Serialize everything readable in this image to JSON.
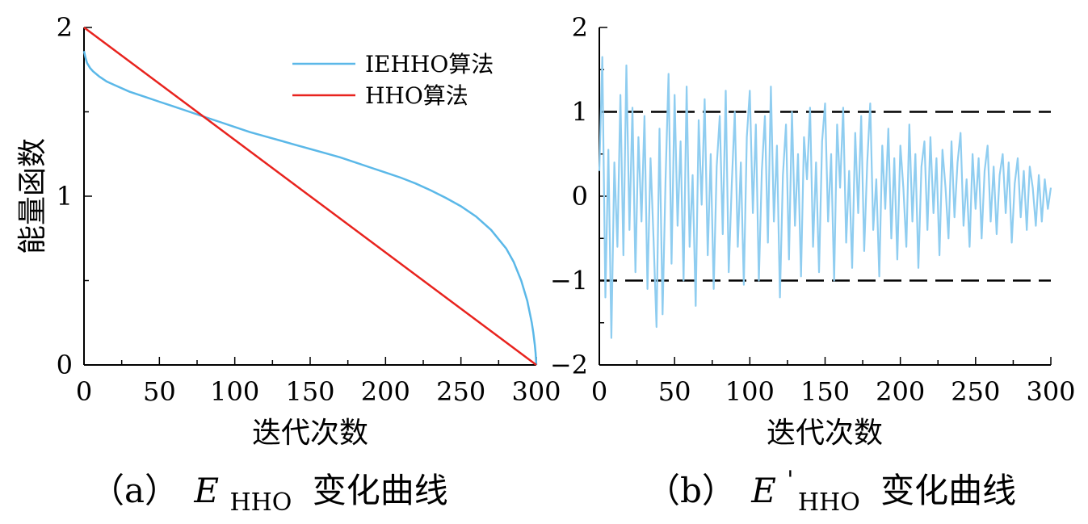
{
  "chart_data": [
    {
      "id": "a",
      "type": "line",
      "caption": {
        "prefix": "（a）",
        "symbol": "E",
        "subscript": "HHO",
        "suffix": "变化曲线"
      },
      "xlabel": "迭代次数",
      "ylabel": "能量函数",
      "xlim": [
        0,
        300
      ],
      "ylim": [
        0,
        2
      ],
      "xticks": [
        0,
        50,
        100,
        150,
        200,
        250,
        300
      ],
      "yticks": [
        0,
        1,
        2
      ],
      "grid": false,
      "legend_position": "top-right",
      "series": [
        {
          "name": "IEHHO算法",
          "color": "#5bb8e8",
          "x": [
            0,
            1,
            2,
            4,
            6,
            10,
            15,
            20,
            30,
            40,
            50,
            60,
            70,
            80,
            90,
            100,
            110,
            120,
            130,
            140,
            150,
            160,
            170,
            180,
            190,
            200,
            210,
            220,
            230,
            240,
            250,
            260,
            270,
            280,
            285,
            290,
            294,
            297,
            298,
            299,
            299.5,
            300
          ],
          "y": [
            1.86,
            1.82,
            1.79,
            1.76,
            1.74,
            1.71,
            1.68,
            1.66,
            1.62,
            1.59,
            1.56,
            1.53,
            1.5,
            1.47,
            1.44,
            1.41,
            1.38,
            1.355,
            1.33,
            1.305,
            1.28,
            1.255,
            1.23,
            1.2,
            1.17,
            1.14,
            1.11,
            1.075,
            1.035,
            0.99,
            0.94,
            0.88,
            0.8,
            0.69,
            0.61,
            0.5,
            0.38,
            0.25,
            0.19,
            0.12,
            0.07,
            0.0
          ]
        },
        {
          "name": "HHO算法",
          "color": "#e8231e",
          "x": [
            0,
            300
          ],
          "y": [
            2,
            0
          ]
        }
      ]
    },
    {
      "id": "b",
      "type": "line",
      "caption": {
        "prefix": "（b）",
        "symbol": "E",
        "prime": "'",
        "subscript": "HHO",
        "suffix": "变化曲线"
      },
      "xlabel": "迭代次数",
      "ylabel": "",
      "xlim": [
        0,
        300
      ],
      "ylim": [
        -2,
        2
      ],
      "xticks": [
        0,
        50,
        100,
        150,
        200,
        250,
        300
      ],
      "yticks": [
        -2,
        -1,
        0,
        1,
        2
      ],
      "ytick_labels": [
        "−2",
        "−1",
        "0",
        "1",
        "2"
      ],
      "grid": false,
      "reference_lines": [
        {
          "y": 1,
          "style": "dashed",
          "color": "#000000"
        },
        {
          "y": -1,
          "style": "dashed",
          "color": "#000000"
        }
      ],
      "series": [
        {
          "color": "#8fcdf0",
          "amplitude_envelope": {
            "start": 1.7,
            "end": 0.5
          },
          "x": [
            0,
            2,
            4,
            6,
            8,
            10,
            12,
            14,
            16,
            18,
            20,
            22,
            24,
            26,
            28,
            30,
            32,
            34,
            36,
            38,
            40,
            42,
            44,
            46,
            48,
            50,
            52,
            54,
            56,
            58,
            60,
            62,
            64,
            66,
            68,
            70,
            72,
            74,
            76,
            78,
            80,
            82,
            84,
            86,
            88,
            90,
            92,
            94,
            96,
            98,
            100,
            102,
            104,
            106,
            108,
            110,
            112,
            114,
            116,
            118,
            120,
            122,
            124,
            126,
            128,
            130,
            132,
            134,
            136,
            138,
            140,
            142,
            144,
            146,
            148,
            150,
            152,
            154,
            156,
            158,
            160,
            162,
            164,
            166,
            168,
            170,
            172,
            174,
            176,
            178,
            180,
            182,
            184,
            186,
            188,
            190,
            192,
            194,
            196,
            198,
            200,
            202,
            204,
            206,
            208,
            210,
            212,
            214,
            216,
            218,
            220,
            222,
            224,
            226,
            228,
            230,
            232,
            234,
            236,
            238,
            240,
            242,
            244,
            246,
            248,
            250,
            252,
            254,
            256,
            258,
            260,
            262,
            264,
            266,
            268,
            270,
            272,
            274,
            276,
            278,
            280,
            282,
            284,
            286,
            288,
            290,
            292,
            294,
            296,
            298,
            300
          ],
          "y": [
            0.3,
            1.65,
            -1.2,
            0.55,
            -1.68,
            0.4,
            -0.6,
            1.2,
            -0.7,
            1.55,
            -0.4,
            1.05,
            -0.9,
            0.7,
            -0.3,
            0.95,
            -1.1,
            0.45,
            -0.5,
            -1.55,
            0.8,
            -1.4,
            0.2,
            1.45,
            -0.8,
            1.2,
            -0.35,
            0.65,
            -1.0,
            1.3,
            -0.6,
            0.25,
            -1.3,
            0.9,
            -0.1,
            1.15,
            -0.7,
            0.5,
            -1.1,
            0.35,
            0.95,
            -0.45,
            1.25,
            -0.9,
            0.15,
            1.0,
            -0.6,
            0.4,
            -1.05,
            0.7,
            1.25,
            -0.2,
            0.85,
            -1.0,
            0.3,
            0.95,
            -0.55,
            1.3,
            -0.3,
            0.6,
            -1.2,
            0.25,
            0.85,
            -0.75,
            1.0,
            -0.35,
            0.5,
            -0.95,
            0.7,
            0.2,
            1.05,
            -0.6,
            0.4,
            -0.9,
            0.65,
            1.1,
            -0.3,
            0.5,
            -1.0,
            0.85,
            0.1,
            1.05,
            -0.55,
            0.3,
            -0.85,
            0.75,
            -0.2,
            0.95,
            -0.65,
            0.4,
            1.1,
            -0.4,
            0.2,
            -0.95,
            0.6,
            -0.15,
            0.8,
            -0.5,
            0.45,
            -0.75,
            0.6,
            0.1,
            -0.6,
            0.85,
            -0.3,
            0.5,
            -0.85,
            0.35,
            0.65,
            -0.4,
            0.7,
            -0.2,
            0.45,
            -0.7,
            0.55,
            0.1,
            -0.5,
            0.65,
            -0.25,
            0.4,
            0.75,
            -0.35,
            0.2,
            -0.6,
            0.5,
            -0.15,
            0.45,
            -0.5,
            0.3,
            0.6,
            -0.3,
            0.35,
            -0.45,
            0.25,
            0.5,
            -0.2,
            0.4,
            -0.55,
            0.15,
            0.45,
            -0.25,
            0.3,
            -0.4,
            0.35,
            0.1,
            -0.35,
            0.25,
            -0.3,
            0.2,
            -0.15,
            0.1
          ]
        }
      ]
    }
  ]
}
